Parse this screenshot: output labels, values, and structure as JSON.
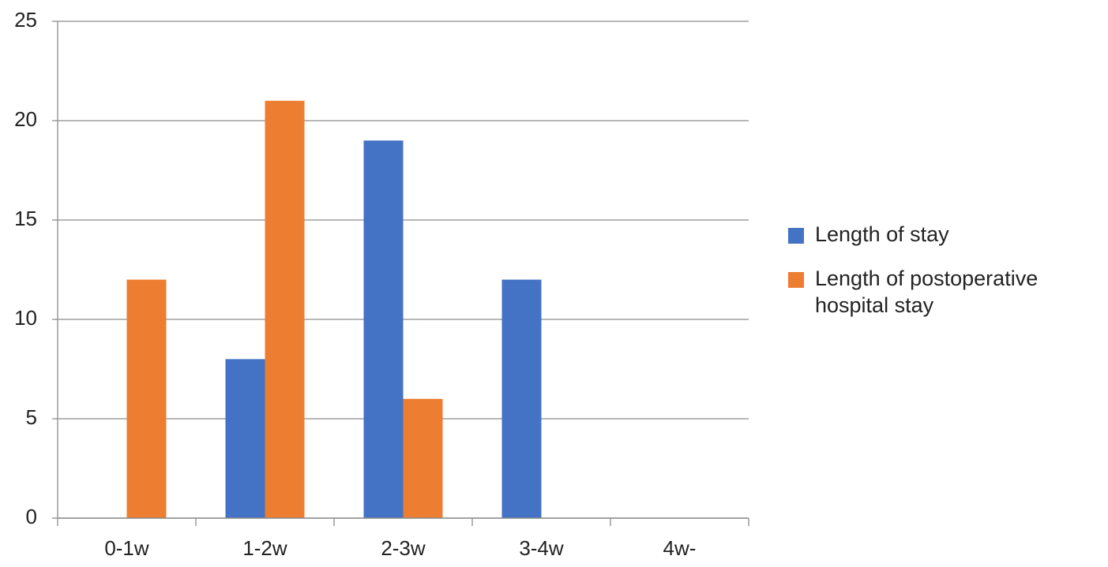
{
  "chart_data": {
    "type": "bar",
    "categories": [
      "0-1w",
      "1-2w",
      "2-3w",
      "3-4w",
      "4w-"
    ],
    "series": [
      {
        "name": "Length of stay",
        "color": "#4472c4",
        "values": [
          0,
          8,
          19,
          12,
          0
        ]
      },
      {
        "name": "Length of postoperative hospital stay",
        "color": "#ed7d31",
        "values": [
          12,
          21,
          6,
          0,
          0
        ]
      }
    ],
    "ylim": [
      0,
      25
    ],
    "yticks": [
      0,
      5,
      10,
      15,
      20,
      25
    ],
    "grid": true,
    "legend": "right"
  }
}
